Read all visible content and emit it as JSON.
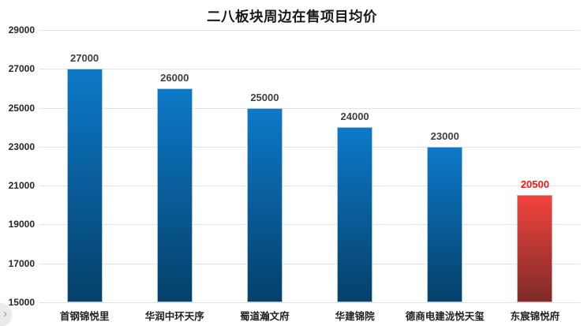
{
  "chart_data": {
    "type": "bar",
    "title": "二八板块周边在售项目均价",
    "categories": [
      "首钢锦悦里",
      "华润中环天序",
      "蜀道瀚文府",
      "华建锦院",
      "德商电建泷悦天玺",
      "东宸锦悦府"
    ],
    "values": [
      27000,
      26000,
      25000,
      24000,
      23000,
      20500
    ],
    "value_labels": [
      "27000",
      "26000",
      "25000",
      "24000",
      "23000",
      "20500"
    ],
    "ylim": [
      15000,
      29000
    ],
    "ytick_step": 2000,
    "yticks": [
      "29000",
      "27000",
      "25000",
      "23000",
      "21000",
      "19000",
      "17000",
      "15000"
    ],
    "grid": true,
    "legend": "none",
    "highlight_index": 5,
    "series_color": {
      "top": "#0c79c8",
      "bottom": "#05406a",
      "edge": "#a9c7e0"
    },
    "highlight_color": {
      "top": "#f2433c",
      "bottom": "#7e2b28",
      "edge": "#d9aaa6"
    },
    "label_color": "#3f3f3f",
    "highlight_label_color": "#fe1616",
    "gridline_color": "#e3e3e3"
  },
  "overlay": {
    "collapse_chevron": "›"
  }
}
